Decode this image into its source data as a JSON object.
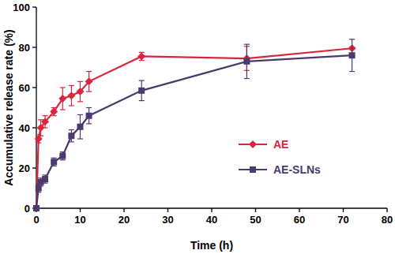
{
  "chart_data": {
    "type": "line",
    "x_label": "Time (h)",
    "y_label": "Accumulative release rate (%)",
    "x": [
      0,
      0.5,
      1,
      2,
      4,
      6,
      8,
      10,
      12,
      24,
      48,
      72
    ],
    "xlim": [
      0,
      80
    ],
    "xticks": [
      0,
      10,
      20,
      30,
      40,
      50,
      60,
      70,
      80
    ],
    "ylim": [
      0,
      100
    ],
    "yticks": [
      0,
      20,
      40,
      60,
      80,
      100
    ],
    "grid": false,
    "legend": "right",
    "series": [
      {
        "name": "AE",
        "color": "#d9263f",
        "marker": "diamond",
        "line_style": "solid",
        "values": [
          0,
          34.5,
          40,
          43,
          48,
          54.5,
          56,
          58,
          63,
          75.5,
          74.5,
          79.5
        ],
        "errors": [
          0,
          2,
          4,
          3,
          2,
          5.5,
          5,
          5,
          5,
          2,
          6,
          0.5
        ]
      },
      {
        "name": "AE-SLNs",
        "color": "#4b3a6e",
        "marker": "square",
        "line_style": "solid",
        "values": [
          0,
          10,
          13,
          14.5,
          23,
          26,
          36,
          40.5,
          46,
          58.5,
          73,
          76
        ],
        "errors": [
          0,
          2,
          2,
          2,
          2,
          2,
          3,
          6,
          4,
          5,
          8.5,
          8
        ]
      }
    ]
  }
}
